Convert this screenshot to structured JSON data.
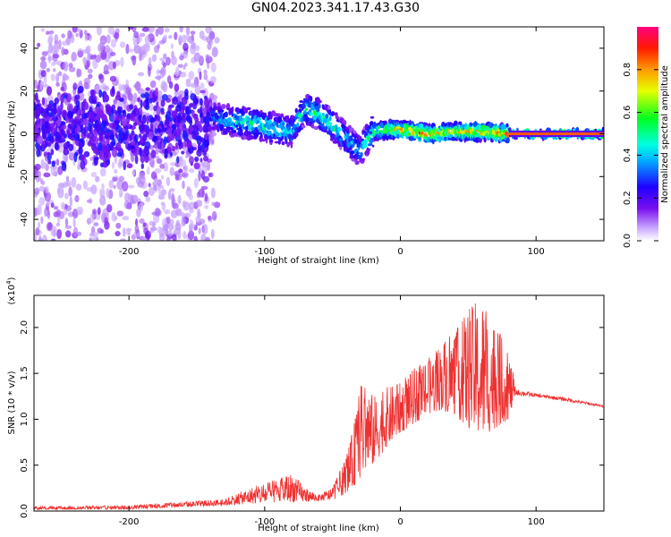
{
  "title": "GN04.2023.341.17.43.G30",
  "chart_data": [
    {
      "type": "heatmap",
      "xlabel": "Height of straight line (km)",
      "ylabel": "Frequency (Hz)",
      "xlim": [
        -270,
        150
      ],
      "ylim": [
        -50,
        50
      ],
      "xticks": [
        -200,
        -100,
        0,
        100
      ],
      "yticks": [
        -40,
        -20,
        0,
        20,
        40
      ],
      "colorbar": {
        "label": "Normalized spectral amplitude",
        "range": [
          0,
          1
        ],
        "ticks": [
          "0.0",
          "0.2",
          "0.4",
          "0.6",
          "0.8"
        ],
        "colors": [
          "#ffffff",
          "#b280ff",
          "#6a00e0",
          "#0000ff",
          "#00ffff",
          "#00ff00",
          "#ffff00",
          "#ff8000",
          "#ff0000",
          "#ff0080"
        ]
      },
      "ridge": [
        {
          "x": -140,
          "y": 8,
          "amp": 0.35
        },
        {
          "x": -125,
          "y": 6,
          "amp": 0.45
        },
        {
          "x": -110,
          "y": 5,
          "amp": 0.5
        },
        {
          "x": -95,
          "y": 3,
          "amp": 0.5
        },
        {
          "x": -80,
          "y": 1,
          "amp": 0.45
        },
        {
          "x": -70,
          "y": 12,
          "amp": 0.5
        },
        {
          "x": -60,
          "y": 9,
          "amp": 0.5
        },
        {
          "x": -50,
          "y": 4,
          "amp": 0.5
        },
        {
          "x": -40,
          "y": -2,
          "amp": 0.45
        },
        {
          "x": -30,
          "y": -8,
          "amp": 0.4
        },
        {
          "x": -20,
          "y": 1,
          "amp": 0.55
        },
        {
          "x": -10,
          "y": 2,
          "amp": 0.7
        },
        {
          "x": 0,
          "y": 2,
          "amp": 0.8
        },
        {
          "x": 20,
          "y": 0,
          "amp": 0.8
        },
        {
          "x": 40,
          "y": 1,
          "amp": 0.75
        },
        {
          "x": 60,
          "y": 1,
          "amp": 0.8
        },
        {
          "x": 80,
          "y": 0,
          "amp": 0.85
        },
        {
          "x": 150,
          "y": 0,
          "amp": 0.85
        }
      ]
    },
    {
      "type": "line",
      "xlabel": "Height of straight line (km)",
      "ylabel": "SNR (10 * v/v)",
      "y_multiplier": "(x10",
      "y_multiplier_exp": "4",
      "y_multiplier_close": ")",
      "xlim": [
        -270,
        150
      ],
      "ylim": [
        0,
        23500
      ],
      "xticks": [
        -200,
        -100,
        0,
        100
      ],
      "yticks": [
        "0.0",
        "0.5",
        "1.0",
        "1.5",
        "2.0"
      ],
      "color": "#ee3030",
      "envelope": {
        "x": [
          -270,
          -200,
          -130,
          -110,
          -90,
          -80,
          -70,
          -60,
          -50,
          -45,
          -40,
          -35,
          -30,
          -25,
          -20,
          -10,
          0,
          10,
          20,
          30,
          40,
          50,
          60,
          70,
          80,
          85,
          100,
          120,
          150
        ],
        "low": [
          150,
          200,
          600,
          800,
          900,
          1000,
          1000,
          1100,
          1200,
          1500,
          2000,
          2500,
          3500,
          4500,
          5000,
          7000,
          8500,
          9500,
          10500,
          11000,
          10500,
          9000,
          8000,
          9000,
          10000,
          12600,
          12400,
          12000,
          11300
        ],
        "high": [
          500,
          600,
          1300,
          2600,
          3500,
          4200,
          2500,
          1800,
          2600,
          4200,
          6000,
          8800,
          13500,
          14500,
          12500,
          13500,
          14000,
          15500,
          16500,
          18500,
          19500,
          22000,
          23500,
          20500,
          17500,
          13300,
          12800,
          12400,
          11500
        ]
      }
    }
  ]
}
